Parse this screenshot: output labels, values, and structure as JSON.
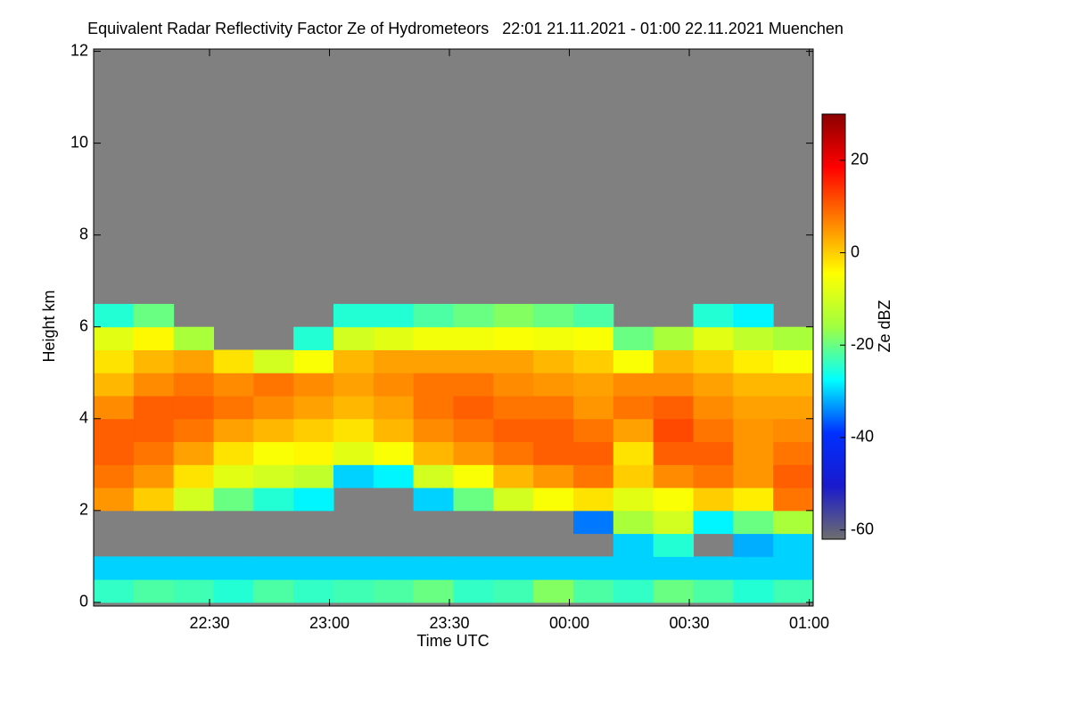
{
  "chart_data": {
    "type": "heatmap",
    "title": "Equivalent Radar Reflectivity Factor Ze of Hydrometeors   22:01 21.11.2021 - 01:00 22.11.2021 Muenchen",
    "x_label": "Time UTC",
    "y_label": "Height km",
    "colorbar_label": "Ze dBZ",
    "x_edges": [
      1,
      11,
      21,
      31,
      41,
      51,
      61,
      71,
      81,
      91,
      101,
      111,
      121,
      131,
      141,
      151,
      161,
      171,
      181
    ],
    "y_edges": [
      0,
      0.5,
      1,
      1.5,
      2,
      2.5,
      3,
      3.5,
      4,
      4.5,
      5,
      5.5,
      6,
      6.5
    ],
    "z": [
      [
        -24,
        -22,
        -23,
        -25,
        -22,
        -24,
        -23,
        -22,
        -20,
        -24,
        -23,
        -18,
        -22,
        -24,
        -20,
        -22,
        -25,
        -23
      ],
      [
        -30,
        -30,
        -30,
        -30,
        -30,
        -30,
        -30,
        -30,
        -30,
        -30,
        -30,
        -30,
        -30,
        -30,
        -30,
        -30,
        -30,
        -30
      ],
      [
        null,
        null,
        null,
        null,
        null,
        null,
        null,
        null,
        null,
        null,
        null,
        null,
        null,
        -30,
        -25,
        null,
        -32,
        -30
      ],
      [
        null,
        null,
        null,
        null,
        null,
        null,
        null,
        null,
        null,
        null,
        null,
        null,
        -35,
        -15,
        -10,
        -28,
        -20,
        -15
      ],
      [
        5,
        0,
        -10,
        -20,
        -25,
        -28,
        null,
        null,
        -30,
        -20,
        -10,
        -5,
        -2,
        -8,
        -5,
        0,
        -3,
        8
      ],
      [
        8,
        5,
        -2,
        -8,
        -10,
        -12,
        -30,
        -28,
        -10,
        -5,
        2,
        5,
        8,
        0,
        6,
        8,
        5,
        10
      ],
      [
        10,
        8,
        4,
        -2,
        -5,
        -4,
        -8,
        -5,
        2,
        5,
        8,
        10,
        10,
        -2,
        10,
        10,
        5,
        8
      ],
      [
        10,
        10,
        8,
        4,
        2,
        0,
        -2,
        2,
        6,
        8,
        10,
        10,
        8,
        4,
        12,
        8,
        5,
        6
      ],
      [
        6,
        10,
        10,
        8,
        6,
        4,
        2,
        4,
        8,
        10,
        8,
        8,
        5,
        8,
        10,
        6,
        4,
        4
      ],
      [
        2,
        6,
        8,
        6,
        8,
        6,
        4,
        6,
        8,
        8,
        6,
        5,
        4,
        6,
        6,
        4,
        2,
        2
      ],
      [
        -2,
        2,
        4,
        -2,
        -10,
        -5,
        2,
        4,
        4,
        4,
        4,
        2,
        0,
        -5,
        2,
        0,
        -3,
        -5
      ],
      [
        -8,
        -4,
        -15,
        null,
        null,
        -25,
        -10,
        -8,
        -6,
        -6,
        -5,
        -6,
        -5,
        -20,
        -15,
        -8,
        -12,
        -15
      ],
      [
        -25,
        -20,
        null,
        null,
        null,
        null,
        -25,
        -25,
        -22,
        -20,
        -18,
        -20,
        -22,
        null,
        null,
        -25,
        -28,
        null
      ]
    ],
    "xlim": [
      1,
      181
    ],
    "ylim": [
      -0.08,
      12.05
    ],
    "xticks": [
      {
        "value": 30,
        "label": "22:30"
      },
      {
        "value": 60,
        "label": "23:00"
      },
      {
        "value": 90,
        "label": "23:30"
      },
      {
        "value": 120,
        "label": "00:00"
      },
      {
        "value": 150,
        "label": "00:30"
      },
      {
        "value": 180,
        "label": "01:00"
      }
    ],
    "yticks": [
      0,
      2,
      4,
      6,
      8,
      10,
      12
    ],
    "clim": [
      -62,
      30
    ],
    "cticks": [
      20,
      0,
      -20,
      -40,
      -60
    ],
    "colormap": [
      "#6e6e6e",
      "#1a1acd",
      "#0030ff",
      "#00ffff",
      "#a0ff40",
      "#ffff00",
      "#ff8000",
      "#ff0000",
      "#8b0000"
    ],
    "background_color": "#808080"
  }
}
